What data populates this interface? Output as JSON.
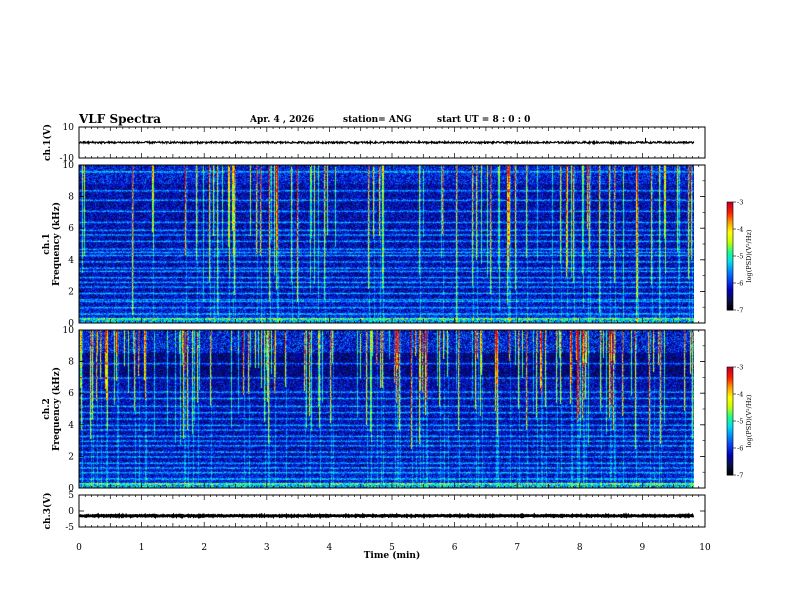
{
  "header": {
    "title": "VLF Spectra",
    "date": "Apr. 4 , 2026",
    "station": "station= ANG",
    "start": "start UT = 8 : 0 : 0"
  },
  "chart_data": [
    {
      "type": "line",
      "ylabel": "ch.1(V)",
      "ylim": [
        -10,
        10
      ],
      "yticks": [
        10,
        -10
      ],
      "xlim": [
        0,
        10
      ],
      "baseline": 0,
      "noise_amplitude": 0.6,
      "spike": {
        "x": 9.05,
        "value": 3
      }
    },
    {
      "type": "heatmap",
      "ylabel_top": "ch.1",
      "ylabel": "Frequency (kHz)",
      "ylim": [
        0,
        10
      ],
      "yticks": [
        0,
        2,
        4,
        6,
        8,
        10
      ],
      "xlim": [
        0,
        10
      ],
      "data_xmax": 9.82,
      "colorbar": {
        "label": "log(PSD)(V²/Hz)",
        "ticks": [
          -3,
          -4,
          -5,
          -6,
          -7
        ],
        "range": [
          -7,
          -3
        ]
      },
      "bands_khz": [
        0.3,
        0.6,
        1.0,
        1.4,
        1.5,
        1.9,
        2.3,
        2.6,
        2.9,
        3.3,
        3.5,
        3.9,
        4.3,
        4.5,
        4.7,
        5.2,
        5.6,
        5.9,
        6.4,
        7.1,
        7.8,
        8.4,
        9.6
      ]
    },
    {
      "type": "heatmap",
      "ylabel_top": "ch.2",
      "ylabel": "Frequency (kHz)",
      "ylim": [
        0,
        10
      ],
      "yticks": [
        0,
        2,
        4,
        6,
        8,
        10
      ],
      "xlim": [
        0,
        10
      ],
      "data_xmax": 9.82,
      "colorbar": {
        "label": "log(PSD)(V²/Hz)",
        "ticks": [
          -3,
          -4,
          -5,
          -6,
          -7
        ],
        "range": [
          -7,
          -3
        ]
      },
      "bands_khz": [
        0.3,
        0.6,
        1.0,
        1.3,
        1.6,
        2.0,
        2.3,
        2.7,
        3.0,
        3.3,
        3.7,
        4.0,
        4.4,
        4.8,
        5.2,
        5.7,
        6.1,
        7.0,
        7.9
      ]
    },
    {
      "type": "line",
      "ylabel": "ch.3(V)",
      "ylim": [
        -5,
        5
      ],
      "yticks": [
        5,
        0,
        -5
      ],
      "xlim": [
        0,
        10
      ],
      "baseline": -1.5,
      "noise_amplitude": 0.15
    }
  ],
  "x_axis": {
    "label": "Time (min)",
    "ticks": [
      0,
      1,
      2,
      3,
      4,
      5,
      6,
      7,
      8,
      9,
      10
    ]
  },
  "colors": {
    "colormap": [
      "#000000",
      "#08104a",
      "#0000b4",
      "#0a3cf0",
      "#008cff",
      "#00e0f0",
      "#20ff80",
      "#c8ff00",
      "#ffff00",
      "#ffa000",
      "#ff2000",
      "#c80028",
      "#ffffff"
    ]
  }
}
